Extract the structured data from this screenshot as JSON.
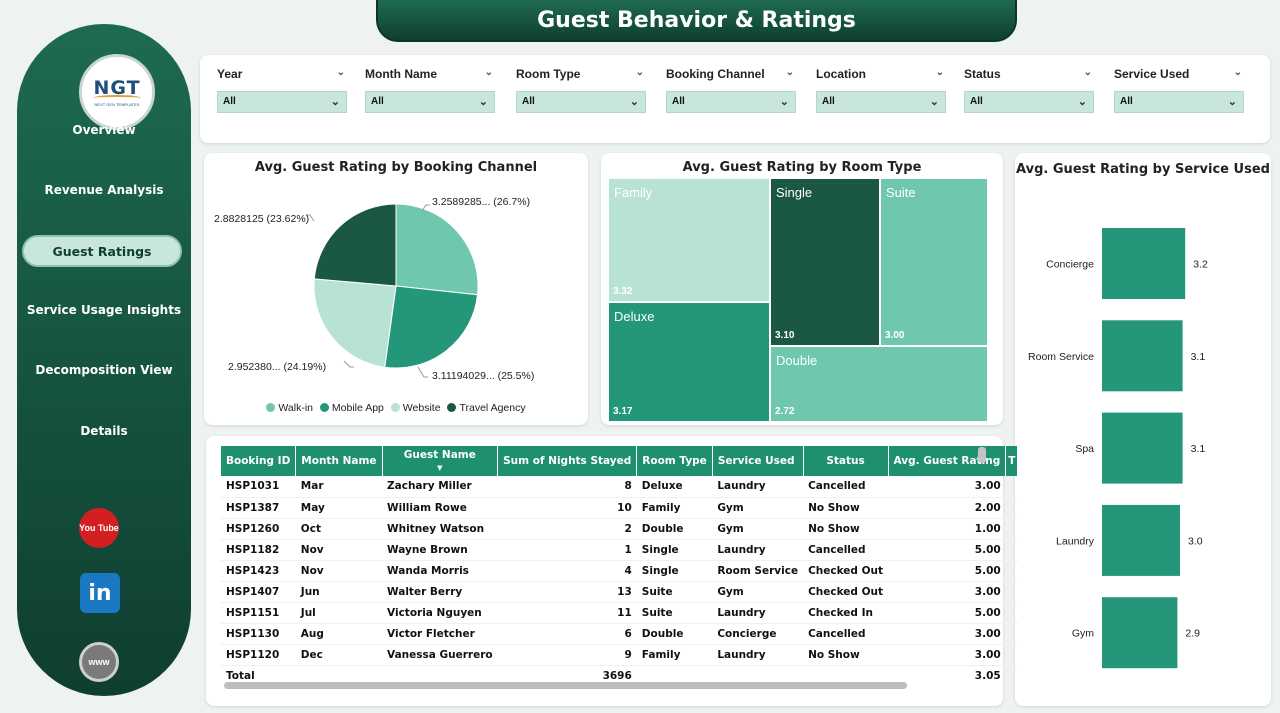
{
  "title": "Guest Behavior & Ratings",
  "logo": {
    "text": "NGT",
    "subtitle": "NEXT GEN TEMPLATES"
  },
  "nav": [
    {
      "label": "Overview"
    },
    {
      "label": "Revenue Analysis"
    },
    {
      "label": "Guest Ratings",
      "active": true
    },
    {
      "label": "Service Usage Insights"
    },
    {
      "label": "Decomposition View"
    },
    {
      "label": "Details"
    }
  ],
  "social": {
    "youtube": "You Tube",
    "linkedin": "in",
    "web": "www"
  },
  "filters": [
    {
      "label": "Year",
      "value": "All"
    },
    {
      "label": "Month Name",
      "value": "All"
    },
    {
      "label": "Room Type",
      "value": "All"
    },
    {
      "label": "Booking Channel",
      "value": "All"
    },
    {
      "label": "Location",
      "value": "All"
    },
    {
      "label": "Status",
      "value": "All"
    },
    {
      "label": "Service Used",
      "value": "All"
    }
  ],
  "colors": {
    "dark": "#1a5844",
    "mid": "#24967a",
    "light": "#6fc8ae",
    "pale": "#b8e2d4",
    "header": "#1e8f6f"
  },
  "pie": {
    "title": "Avg. Guest Rating by Booking Channel",
    "labels": {
      "walkin": "3.2589285... (26.7%)",
      "mobile": "3.11194029... (25.5%)",
      "website": "2.952380... (24.19%)",
      "travel": "2.8828125 (23.62%)"
    },
    "legend": [
      {
        "name": "Walk-in",
        "color": "#6fc8ae"
      },
      {
        "name": "Mobile App",
        "color": "#24967a"
      },
      {
        "name": "Website",
        "color": "#b8e2d4"
      },
      {
        "name": "Travel Agency",
        "color": "#1a5844"
      }
    ]
  },
  "treemap": {
    "title": "Avg. Guest Rating by Room Type",
    "tiles": [
      {
        "name": "Family",
        "value": "3.32"
      },
      {
        "name": "Single",
        "value": "3.10"
      },
      {
        "name": "Suite",
        "value": "3.00"
      },
      {
        "name": "Deluxe",
        "value": "3.17"
      },
      {
        "name": "Double",
        "value": "2.72"
      }
    ]
  },
  "bars": {
    "title": "Avg. Guest Rating by Service Used",
    "items": [
      {
        "name": "Concierge",
        "label": "3.2"
      },
      {
        "name": "Room Service",
        "label": "3.1"
      },
      {
        "name": "Spa",
        "label": "3.1"
      },
      {
        "name": "Laundry",
        "label": "3.0"
      },
      {
        "name": "Gym",
        "label": "2.9"
      }
    ]
  },
  "chart_data": [
    {
      "type": "pie",
      "title": "Avg. Guest Rating by Booking Channel",
      "categories": [
        "Walk-in",
        "Mobile App",
        "Website",
        "Travel Agency"
      ],
      "values": [
        3.2589285,
        3.11194029,
        2.95238,
        2.8828125
      ],
      "percentages": [
        26.7,
        25.5,
        24.19,
        23.62
      ],
      "legend": "bottom"
    },
    {
      "type": "treemap",
      "title": "Avg. Guest Rating by Room Type",
      "categories": [
        "Family",
        "Single",
        "Suite",
        "Deluxe",
        "Double"
      ],
      "values": [
        3.32,
        3.1,
        3.0,
        3.17,
        2.72
      ]
    },
    {
      "type": "bar",
      "title": "Avg. Guest Rating by Service Used",
      "categories": [
        "Concierge",
        "Room Service",
        "Spa",
        "Laundry",
        "Gym"
      ],
      "values": [
        3.2,
        3.1,
        3.1,
        3.0,
        2.9
      ]
    }
  ],
  "table": {
    "columns": [
      "Booking ID",
      "Month Name",
      "Guest Name",
      "Sum of Nights Stayed",
      "Room Type",
      "Service Used",
      "Status",
      "Avg. Guest Rating",
      "T"
    ],
    "rows": [
      [
        "HSP1031",
        "Mar",
        "Zachary Miller",
        "8",
        "Deluxe",
        "Laundry",
        "Cancelled",
        "3.00"
      ],
      [
        "HSP1387",
        "May",
        "William Rowe",
        "10",
        "Family",
        "Gym",
        "No Show",
        "2.00"
      ],
      [
        "HSP1260",
        "Oct",
        "Whitney Watson",
        "2",
        "Double",
        "Gym",
        "No Show",
        "1.00"
      ],
      [
        "HSP1182",
        "Nov",
        "Wayne Brown",
        "1",
        "Single",
        "Laundry",
        "Cancelled",
        "5.00"
      ],
      [
        "HSP1423",
        "Nov",
        "Wanda Morris",
        "4",
        "Single",
        "Room Service",
        "Checked Out",
        "5.00"
      ],
      [
        "HSP1407",
        "Jun",
        "Walter Berry",
        "13",
        "Suite",
        "Gym",
        "Checked Out",
        "3.00"
      ],
      [
        "HSP1151",
        "Jul",
        "Victoria Nguyen",
        "11",
        "Suite",
        "Laundry",
        "Checked In",
        "5.00"
      ],
      [
        "HSP1130",
        "Aug",
        "Victor Fletcher",
        "6",
        "Double",
        "Concierge",
        "Cancelled",
        "3.00"
      ],
      [
        "HSP1120",
        "Dec",
        "Vanessa Guerrero",
        "9",
        "Family",
        "Laundry",
        "No Show",
        "3.00"
      ]
    ],
    "total": {
      "label": "Total",
      "nights": "3696",
      "rating": "3.05"
    }
  }
}
